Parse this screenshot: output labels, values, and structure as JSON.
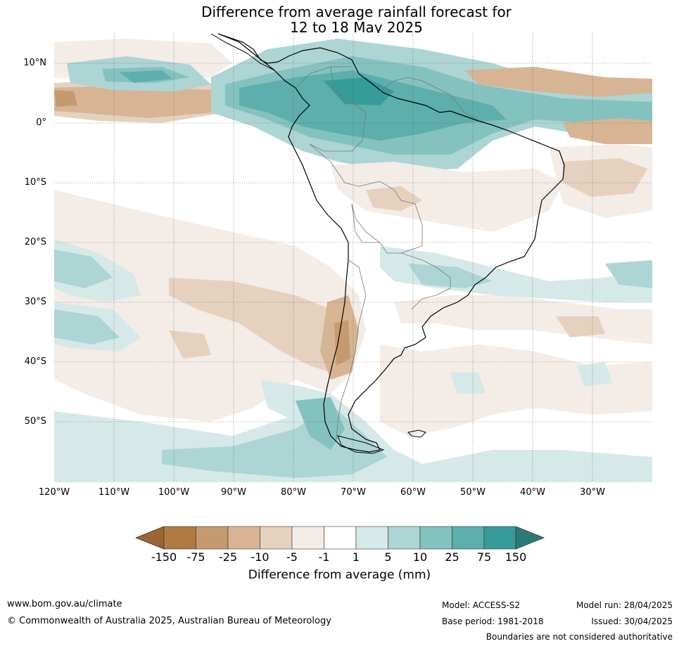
{
  "title": {
    "line1": "Difference from average rainfall forecast for",
    "line2": "12 to 18 May 2025"
  },
  "map": {
    "region": "South America",
    "lat_labels": [
      "10°N",
      "0°",
      "10°S",
      "20°S",
      "30°S",
      "40°S",
      "50°S"
    ],
    "lon_labels": [
      "120°W",
      "110°W",
      "100°W",
      "90°W",
      "80°W",
      "70°W",
      "60°W",
      "50°W",
      "40°W",
      "30°W"
    ],
    "grid": "dotted",
    "extent": {
      "lon": [
        -120,
        -20
      ],
      "lat": [
        -60,
        15
      ]
    }
  },
  "legend": {
    "title": "Difference from average (mm)",
    "tick_labels": [
      "-150",
      "-75",
      "-25",
      "-10",
      "-5",
      "-1",
      "1",
      "5",
      "10",
      "25",
      "75",
      "150"
    ],
    "colors": [
      "#9b6434",
      "#b07a43",
      "#c69a6f",
      "#d7b594",
      "#e6d1bf",
      "#f4ece6",
      "#ffffff",
      "#d5e9e8",
      "#acd5d4",
      "#84c2c0",
      "#5cafad",
      "#369c99",
      "#2c7a78"
    ]
  },
  "footer": {
    "website": "www.bom.gov.au/climate",
    "copyright": "© Commonwealth of Australia 2025, Australian Bureau of Meteorology",
    "model": "Model: ACCESS-S2",
    "base_period": "Base period: 1981-2018",
    "model_run": "Model run: 28/04/2025",
    "issued": "Issued: 30/04/2025",
    "disclaimer": "Boundaries are not considered authoritative"
  }
}
